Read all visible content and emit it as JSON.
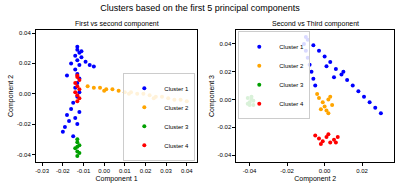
{
  "chart_data": {
    "type": "scatter",
    "title": "Clusters based on the first 5 principal components",
    "marker": "circle",
    "subplots": [
      {
        "subtitle": "First vs second component",
        "x_label": "Component 1",
        "y_label": "Component 2",
        "xlim": [
          -0.033,
          0.045
        ],
        "ylim": [
          -0.045,
          0.042
        ],
        "xticks": [
          -0.03,
          -0.02,
          -0.01,
          {
            "value": 0,
            "label": "0.00"
          },
          0.01,
          0.02,
          0.03,
          0.04
        ],
        "yticks": [
          -0.04,
          -0.02,
          {
            "value": 0,
            "label": "0.00"
          },
          0.02,
          0.04
        ],
        "legend": "lower right",
        "series": [
          {
            "name": "Cluster 1",
            "color": "#0000ff",
            "x": [
              -0.013,
              -0.013,
              -0.012,
              -0.014,
              -0.013,
              -0.012,
              -0.014,
              -0.013,
              -0.012,
              -0.013,
              -0.014,
              -0.012,
              -0.013,
              -0.015,
              -0.016,
              -0.018,
              -0.017,
              -0.019,
              -0.02,
              -0.016,
              -0.018,
              -0.011,
              -0.009,
              -0.007,
              -0.005,
              -0.012,
              -0.013,
              -0.015,
              -0.014,
              -0.011
            ],
            "values": [
              0.031,
              0.029,
              0.027,
              0.025,
              0.022,
              0.019,
              0.016,
              0.013,
              0.01,
              0.007,
              0.004,
              0.001,
              -0.002,
              -0.006,
              -0.01,
              -0.014,
              -0.018,
              -0.022,
              -0.025,
              0.02,
              0.012,
              0.024,
              0.021,
              0.019,
              0.018,
              -0.012,
              -0.02,
              -0.028,
              -0.016,
              0.028
            ]
          },
          {
            "name": "Cluster 2",
            "color": "#ffa500",
            "x": [
              -0.008,
              -0.005,
              -0.002,
              0.001,
              0.004,
              0.007,
              0.01,
              0.013,
              0.016,
              0.019,
              0.022,
              0.025,
              0.028,
              0.031,
              0.034,
              0.037,
              0.04,
              0.0,
              0.012,
              0.024
            ],
            "values": [
              0.005,
              0.004,
              0.004,
              0.003,
              0.003,
              0.002,
              0.001,
              0.001,
              0.0,
              0.0,
              -0.001,
              -0.002,
              -0.002,
              -0.003,
              -0.004,
              -0.004,
              -0.005,
              0.002,
              0.0,
              -0.003
            ]
          },
          {
            "name": "Cluster 3",
            "color": "#00a000",
            "x": [
              -0.013,
              -0.013,
              -0.012,
              -0.013,
              -0.014,
              -0.013,
              -0.012,
              -0.013
            ],
            "values": [
              -0.03,
              -0.032,
              -0.034,
              -0.035,
              -0.036,
              -0.038,
              -0.039,
              -0.041
            ]
          },
          {
            "name": "Cluster 4",
            "color": "#ff0000",
            "x": [
              -0.013,
              -0.012,
              -0.013,
              -0.014,
              -0.012,
              -0.013,
              -0.014,
              -0.012,
              -0.013,
              -0.013
            ],
            "values": [
              -0.005,
              -0.003,
              -0.001,
              0.001,
              0.003,
              0.005,
              0.007,
              0.009,
              0.011,
              0.012
            ]
          }
        ]
      },
      {
        "subtitle": "Second vs Third component",
        "x_label": "Component 2",
        "y_label": "Component 3",
        "xlim": [
          -0.047,
          0.037
        ],
        "ylim": [
          -0.045,
          0.05
        ],
        "xticks": [
          -0.04,
          -0.02,
          {
            "value": 0,
            "label": "0.00"
          },
          0.02
        ],
        "yticks": [
          -0.04,
          -0.02,
          {
            "value": 0,
            "label": "0.00"
          },
          0.02,
          0.04
        ],
        "legend": "upper left",
        "series": [
          {
            "name": "Cluster 1",
            "color": "#0000ff",
            "x": [
              -0.01,
              -0.009,
              -0.006,
              -0.003,
              0.0,
              0.003,
              0.006,
              0.009,
              0.012,
              0.015,
              0.018,
              0.021,
              0.024,
              0.027,
              0.03,
              -0.011,
              -0.01,
              -0.009,
              -0.008,
              -0.007,
              -0.006,
              -0.005,
              0.001,
              0.005,
              0.01
            ],
            "values": [
              0.045,
              0.043,
              0.039,
              0.035,
              0.031,
              0.027,
              0.022,
              0.018,
              0.014,
              0.01,
              0.006,
              0.002,
              -0.002,
              -0.006,
              -0.01,
              0.04,
              0.035,
              0.03,
              0.025,
              0.02,
              0.015,
              0.01,
              0.024,
              0.016,
              0.02
            ]
          },
          {
            "name": "Cluster 2",
            "color": "#ffa500",
            "x": [
              -0.004,
              -0.003,
              -0.001,
              0.0,
              0.001,
              0.002,
              0.003,
              0.004,
              -0.002,
              0.002
            ],
            "values": [
              0.004,
              0.001,
              -0.002,
              -0.005,
              -0.008,
              -0.01,
              0.002,
              -0.004,
              -0.007,
              0.0
            ]
          },
          {
            "name": "Cluster 3",
            "color": "#00a000",
            "x": [
              -0.041,
              -0.04,
              -0.039,
              -0.038,
              -0.04,
              -0.039,
              -0.041,
              -0.038
            ],
            "values": [
              0.001,
              -0.002,
              0.0,
              -0.001,
              -0.004,
              0.002,
              -0.003,
              -0.004
            ]
          },
          {
            "name": "Cluster 4",
            "color": "#ff0000",
            "x": [
              -0.005,
              -0.003,
              -0.001,
              0.001,
              0.003,
              0.005,
              0.007,
              -0.002,
              0.002,
              0.006
            ],
            "values": [
              -0.026,
              -0.028,
              -0.03,
              -0.027,
              -0.031,
              -0.029,
              -0.027,
              -0.032,
              -0.025,
              -0.031
            ]
          }
        ]
      }
    ]
  }
}
